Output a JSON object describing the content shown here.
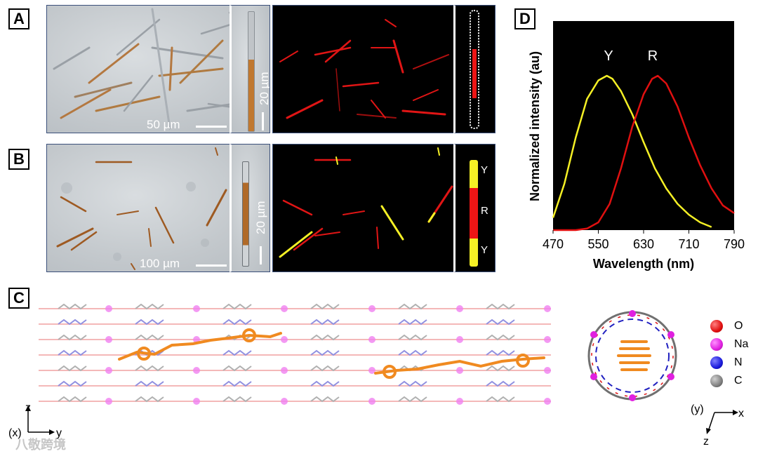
{
  "panels": {
    "A": "A",
    "B": "B",
    "C": "C",
    "D": "D"
  },
  "panel_a": {
    "scale_main": "50 µm",
    "scale_inset": "20 µm"
  },
  "panel_b": {
    "scale_main": "100 µm",
    "scale_inset": "20 µm",
    "segment_labels": [
      "Y",
      "R",
      "Y"
    ]
  },
  "panel_c": {
    "axes_left": {
      "z": "z",
      "x": "(x)",
      "y": "y"
    },
    "axes_right": {
      "y": "(y)",
      "x": "x",
      "z": "z"
    },
    "legend": [
      {
        "label": "O",
        "color": "#e01010"
      },
      {
        "label": "Na",
        "color": "#e020e0"
      },
      {
        "label": "N",
        "color": "#1a1adc"
      },
      {
        "label": "C",
        "color": "#808080"
      }
    ]
  },
  "watermark": "八敬跨境",
  "chart_data": {
    "type": "line",
    "xlabel": "Wavelength (nm)",
    "ylabel": "Normalized intensity (au)",
    "xlim": [
      470,
      790
    ],
    "xticks": [
      "470",
      "550",
      "630",
      "710",
      "790"
    ],
    "ylim": [
      0,
      1
    ],
    "background": "#000000",
    "series": [
      {
        "name": "Y",
        "color": "#f5f025",
        "x": [
          470,
          490,
          510,
          530,
          550,
          565,
          575,
          590,
          610,
          630,
          650,
          670,
          690,
          710,
          730,
          750
        ],
        "values": [
          0.08,
          0.3,
          0.6,
          0.85,
          0.97,
          1.0,
          0.98,
          0.9,
          0.75,
          0.57,
          0.4,
          0.27,
          0.17,
          0.1,
          0.05,
          0.02
        ]
      },
      {
        "name": "R",
        "color": "#e01010",
        "x": [
          470,
          510,
          530,
          550,
          570,
          590,
          610,
          630,
          645,
          655,
          670,
          690,
          710,
          730,
          750,
          770,
          790
        ],
        "values": [
          0.0,
          0.0,
          0.01,
          0.05,
          0.17,
          0.4,
          0.67,
          0.88,
          0.98,
          1.0,
          0.95,
          0.8,
          0.6,
          0.42,
          0.27,
          0.16,
          0.11
        ]
      }
    ]
  }
}
